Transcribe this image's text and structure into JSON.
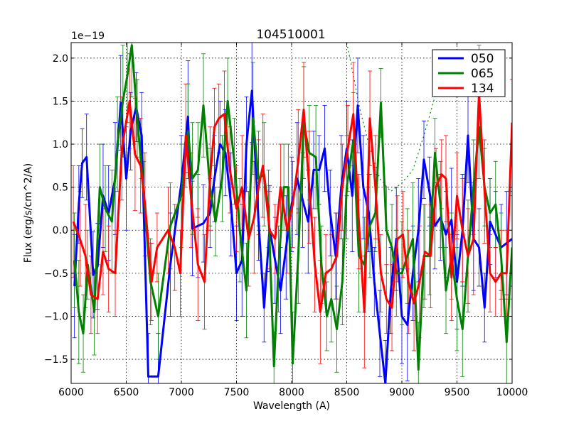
{
  "chart_data": {
    "type": "line",
    "title": "104510001",
    "xlabel": "Wavelength (A)",
    "ylabel": "Flux (erg/s/cm^2/A)",
    "offset_text": "1e−19",
    "xlim": [
      6000,
      10000
    ],
    "ylim": [
      -1.78,
      2.18
    ],
    "xticks": [
      6000,
      6500,
      7000,
      7500,
      8000,
      8500,
      9000,
      9500,
      10000
    ],
    "xtick_labels": [
      "6000",
      "6500",
      "7000",
      "7500",
      "8000",
      "8500",
      "9000",
      "9500",
      "10000"
    ],
    "yticks": [
      -1.5,
      -1.0,
      -0.5,
      0.0,
      0.5,
      1.0,
      1.5,
      2.0
    ],
    "ytick_labels": [
      "−1.5",
      "−1.0",
      "−0.5",
      "0.0",
      "0.5",
      "1.0",
      "1.5",
      "2.0"
    ],
    "grid": true,
    "legend_position": "top-right",
    "series": [
      {
        "name": "050",
        "color": "#0000ff",
        "x": [
          6030,
          6070,
          6100,
          6140,
          6200,
          6240,
          6290,
          6340,
          6400,
          6450,
          6500,
          6540,
          6590,
          6640,
          6700,
          6790,
          6900,
          7000,
          7060,
          7100,
          7150,
          7200,
          7260,
          7300,
          7350,
          7400,
          7450,
          7500,
          7550,
          7590,
          7640,
          7700,
          7750,
          7800,
          7850,
          7900,
          7950,
          8000,
          8050,
          8100,
          8150,
          8200,
          8250,
          8300,
          8350,
          8400,
          8450,
          8500,
          8550,
          8600,
          8650,
          8700,
          8750,
          8800,
          8850,
          8900,
          8950,
          9000,
          9050,
          9100,
          9150,
          9200,
          9250,
          9300,
          9350,
          9400,
          9450,
          9500,
          9550,
          9600,
          9650,
          9700,
          9750,
          9800,
          9850,
          9900,
          9950,
          10000
        ],
        "y": [
          -0.65,
          0.3,
          0.78,
          0.85,
          -0.52,
          -0.42,
          0.4,
          0.2,
          0.6,
          1.48,
          0.6,
          1.15,
          1.43,
          1.1,
          -1.7,
          -1.7,
          -0.4,
          0.55,
          1.32,
          0.02,
          0.05,
          0.08,
          0.2,
          0.6,
          1.0,
          0.9,
          0.3,
          -0.5,
          -0.35,
          1.0,
          1.62,
          0.1,
          -0.9,
          0.02,
          -0.35,
          -0.7,
          -0.2,
          0.3,
          0.6,
          0.35,
          0.1,
          0.7,
          0.7,
          0.95,
          0.2,
          -0.3,
          0.5,
          0.95,
          0.4,
          1.45,
          0.5,
          0.2,
          -0.6,
          -1.2,
          -1.78,
          -0.7,
          -0.1,
          -1.0,
          -1.1,
          -0.5,
          0.0,
          0.82,
          0.45,
          0.05,
          0.15,
          -0.05,
          0.12,
          -0.6,
          0.0,
          1.1,
          -0.1,
          -0.2,
          -0.9,
          0.1,
          -0.05,
          -0.2,
          -0.15,
          -0.1
        ]
      },
      {
        "name": "065",
        "color": "#008000",
        "x": [
          6030,
          6070,
          6110,
          6150,
          6210,
          6260,
          6310,
          6370,
          6420,
          6470,
          6510,
          6550,
          6600,
          6660,
          6720,
          6790,
          6900,
          7000,
          7060,
          7100,
          7150,
          7200,
          7260,
          7310,
          7370,
          7420,
          7480,
          7530,
          7590,
          7650,
          7700,
          7750,
          7790,
          7840,
          7880,
          7930,
          7970,
          8010,
          8060,
          8110,
          8160,
          8220,
          8270,
          8320,
          8360,
          8410,
          8460,
          8500,
          8560,
          8610,
          8660,
          8710,
          8760,
          8810,
          8860,
          8910,
          8950,
          9000,
          9050,
          9100,
          9150,
          9200,
          9250,
          9300,
          9350,
          9400,
          9450,
          9500,
          9550,
          9600,
          9650,
          9700,
          9750,
          9800,
          9850,
          9900,
          9950,
          10000
        ],
        "y": [
          -0.35,
          -0.95,
          -1.2,
          -0.4,
          -0.95,
          0.5,
          0.25,
          0.1,
          1.0,
          1.5,
          1.8,
          2.15,
          1.3,
          0.4,
          -0.6,
          -1.0,
          0.05,
          0.4,
          1.15,
          0.6,
          0.7,
          1.45,
          0.5,
          0.1,
          0.6,
          1.5,
          0.8,
          0.0,
          -0.7,
          1.3,
          0.6,
          0.65,
          0.25,
          -1.58,
          -0.45,
          0.5,
          0.5,
          -1.55,
          -0.3,
          1.25,
          0.9,
          0.85,
          -0.4,
          -1.0,
          -0.8,
          -1.15,
          -0.6,
          0.5,
          1.05,
          -0.3,
          -0.4,
          0.05,
          0.2,
          1.48,
          0.0,
          -0.2,
          -0.5,
          -0.5,
          -0.3,
          -0.1,
          -1.62,
          -0.3,
          -0.3,
          0.9,
          0.3,
          -0.7,
          -0.3,
          -0.8,
          -1.15,
          -0.3,
          0.5,
          1.2,
          0.5,
          0.2,
          0.3,
          -0.3,
          -1.3,
          -0.2
        ]
      },
      {
        "name": "134",
        "color": "#ff0000",
        "x": [
          6020,
          6080,
          6130,
          6180,
          6240,
          6290,
          6340,
          6400,
          6460,
          6530,
          6580,
          6630,
          6670,
          6730,
          6780,
          6880,
          6940,
          6990,
          7040,
          7090,
          7150,
          7210,
          7260,
          7300,
          7340,
          7390,
          7440,
          7500,
          7550,
          7610,
          7660,
          7700,
          7740,
          7800,
          7850,
          7900,
          7960,
          8010,
          8060,
          8110,
          8160,
          8210,
          8260,
          8310,
          8360,
          8410,
          8460,
          8510,
          8560,
          8610,
          8660,
          8710,
          8760,
          8810,
          8860,
          8910,
          8960,
          9010,
          9060,
          9110,
          9160,
          9210,
          9260,
          9310,
          9360,
          9400,
          9450,
          9500,
          9550,
          9600,
          9650,
          9700,
          9750,
          9800,
          9850,
          9900,
          9950,
          10000
        ],
        "y": [
          0.1,
          -0.1,
          -0.3,
          -0.75,
          -0.8,
          -0.25,
          -0.45,
          -0.5,
          0.95,
          1.5,
          0.88,
          0.75,
          0.3,
          -0.6,
          -0.2,
          0.0,
          -0.2,
          -0.5,
          1.1,
          0.35,
          -0.4,
          -0.6,
          0.6,
          1.2,
          1.3,
          1.35,
          0.7,
          0.25,
          0.5,
          -0.1,
          0.15,
          0.5,
          0.75,
          0.0,
          -0.1,
          0.5,
          0.0,
          0.3,
          0.8,
          1.4,
          0.5,
          -0.4,
          -0.95,
          -0.5,
          -0.45,
          -0.3,
          0.5,
          0.95,
          1.35,
          0.1,
          -0.95,
          1.3,
          0.5,
          -0.5,
          -0.8,
          -0.9,
          -0.1,
          -0.05,
          -0.6,
          -0.85,
          -0.6,
          -0.25,
          -0.3,
          0.5,
          0.65,
          0.6,
          -0.55,
          0.4,
          0.0,
          -0.3,
          -0.1,
          1.6,
          0.45,
          -0.5,
          -0.6,
          -0.5,
          -0.5,
          1.25
        ]
      }
    ],
    "dotted_curve": {
      "color": "#008000",
      "x": [
        8500,
        8560,
        8620,
        8700,
        8800,
        8900,
        9000,
        9100,
        9200,
        9300,
        9400
      ],
      "y": [
        2.18,
        1.8,
        1.4,
        1.0,
        0.6,
        0.45,
        0.55,
        0.7,
        1.1,
        1.55,
        2.0
      ]
    }
  }
}
